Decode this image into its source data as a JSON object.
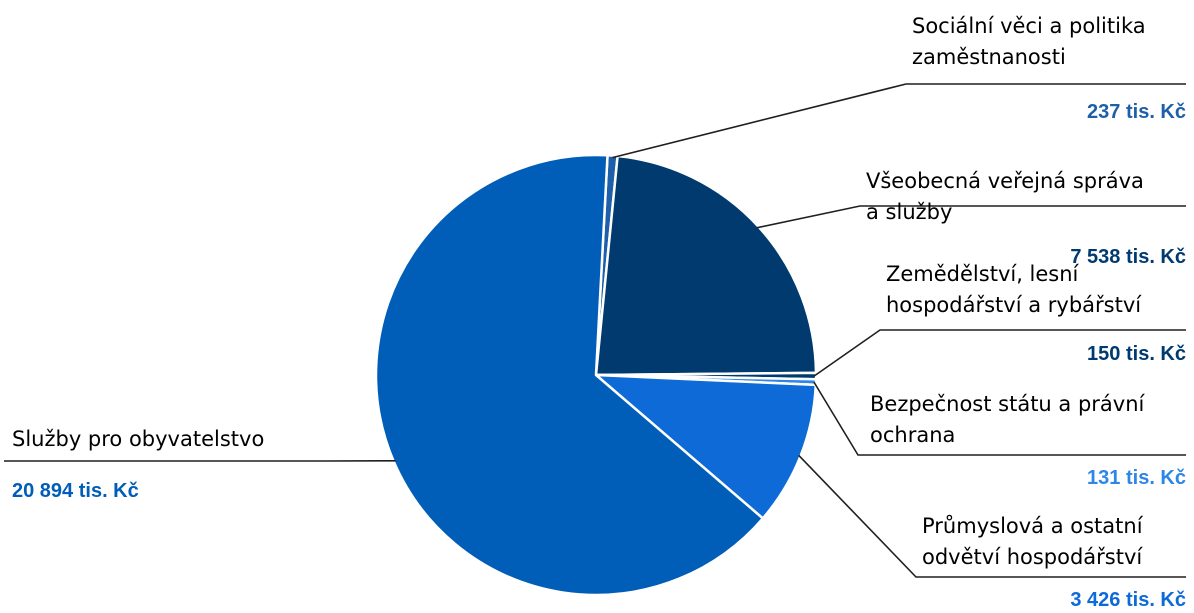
{
  "chart_data": {
    "type": "pie",
    "title": "",
    "unit": "tis. Kč",
    "slices": [
      {
        "name": "Sociální věci a politika zaměstnanosti",
        "name_lines": [
          "Sociální věci a politika",
          "zaměstnanosti"
        ],
        "value": 237,
        "value_label": "237 tis. Kč",
        "color": "#1d5fa8",
        "label_color": "#1d5fa8",
        "label_side": "right"
      },
      {
        "name": "Všeobecná veřejná správa a služby",
        "name_lines": [
          "Všeobecná veřejná správa",
          "a služby"
        ],
        "value": 7538,
        "value_label": "7 538 tis. Kč",
        "color": "#003a6e",
        "label_color": "#003a6e",
        "label_side": "right"
      },
      {
        "name": "Zemědělství, lesní hospodářství a rybářství",
        "name_lines": [
          "Zemědělství, lesní",
          "hospodářství a rybářství"
        ],
        "value": 150,
        "value_label": "150 tis. Kč",
        "color": "#003a6e",
        "label_color": "#003a6e",
        "label_side": "right"
      },
      {
        "name": "Bezpečnost státu a právní ochrana",
        "name_lines": [
          "Bezpečnost státu a právní",
          "ochrana"
        ],
        "value": 131,
        "value_label": "131 tis. Kč",
        "color": "#2d86e8",
        "label_color": "#2d86e8",
        "label_side": "right"
      },
      {
        "name": "Průmyslová a ostatní odvětví hospodářství",
        "name_lines": [
          "Průmyslová a ostatní",
          "odvětví hospodářství"
        ],
        "value": 3426,
        "value_label": "3 426 tis. Kč",
        "color": "#0e6ad6",
        "label_color": "#0e6ad6",
        "label_side": "right"
      },
      {
        "name": "Služby pro obyvatelstvo",
        "name_lines": [
          "Služby pro obyvatelstvo"
        ],
        "value": 20894,
        "value_label": "20 894 tis. Kč",
        "color": "#005eb8",
        "label_color": "#005eb8",
        "label_side": "left"
      }
    ]
  }
}
